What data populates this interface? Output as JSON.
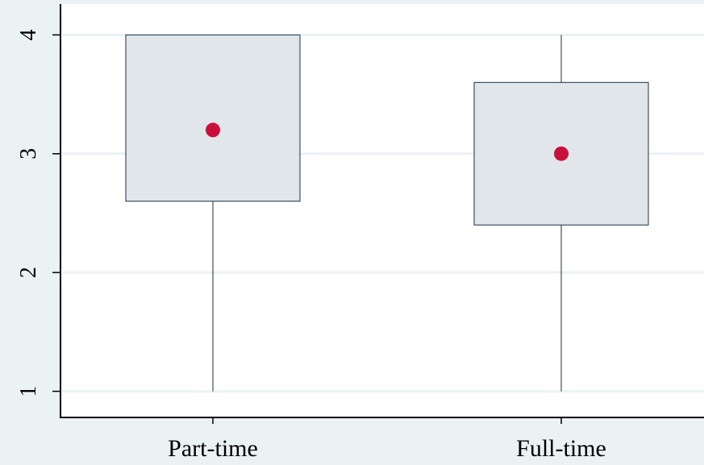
{
  "chart_data": {
    "type": "box",
    "title": "",
    "xlabel": "",
    "ylabel": "",
    "ylim": [
      0.78,
      4.26
    ],
    "yticks": [
      1,
      2,
      3,
      4
    ],
    "categories": [
      "Part-time",
      "Full-time"
    ],
    "series": [
      {
        "values": [
          {
            "min": 1,
            "q1": 2.6,
            "q3": 4.0,
            "max": 4.0,
            "marker": 3.2
          },
          {
            "min": 1,
            "q1": 2.4,
            "q3": 3.6,
            "max": 4.0,
            "marker": 3.0
          }
        ]
      }
    ],
    "grid": true,
    "legend": "none",
    "colors": {
      "background": "#eaf2f3",
      "plot_area": "#ffffff",
      "grid": "#eaf2f3",
      "box_fill": "#e1e6ea",
      "box_stroke": "#1a2e45",
      "whisker": "#1a2e45",
      "marker": "#c8103a",
      "axis": "#000000"
    }
  }
}
